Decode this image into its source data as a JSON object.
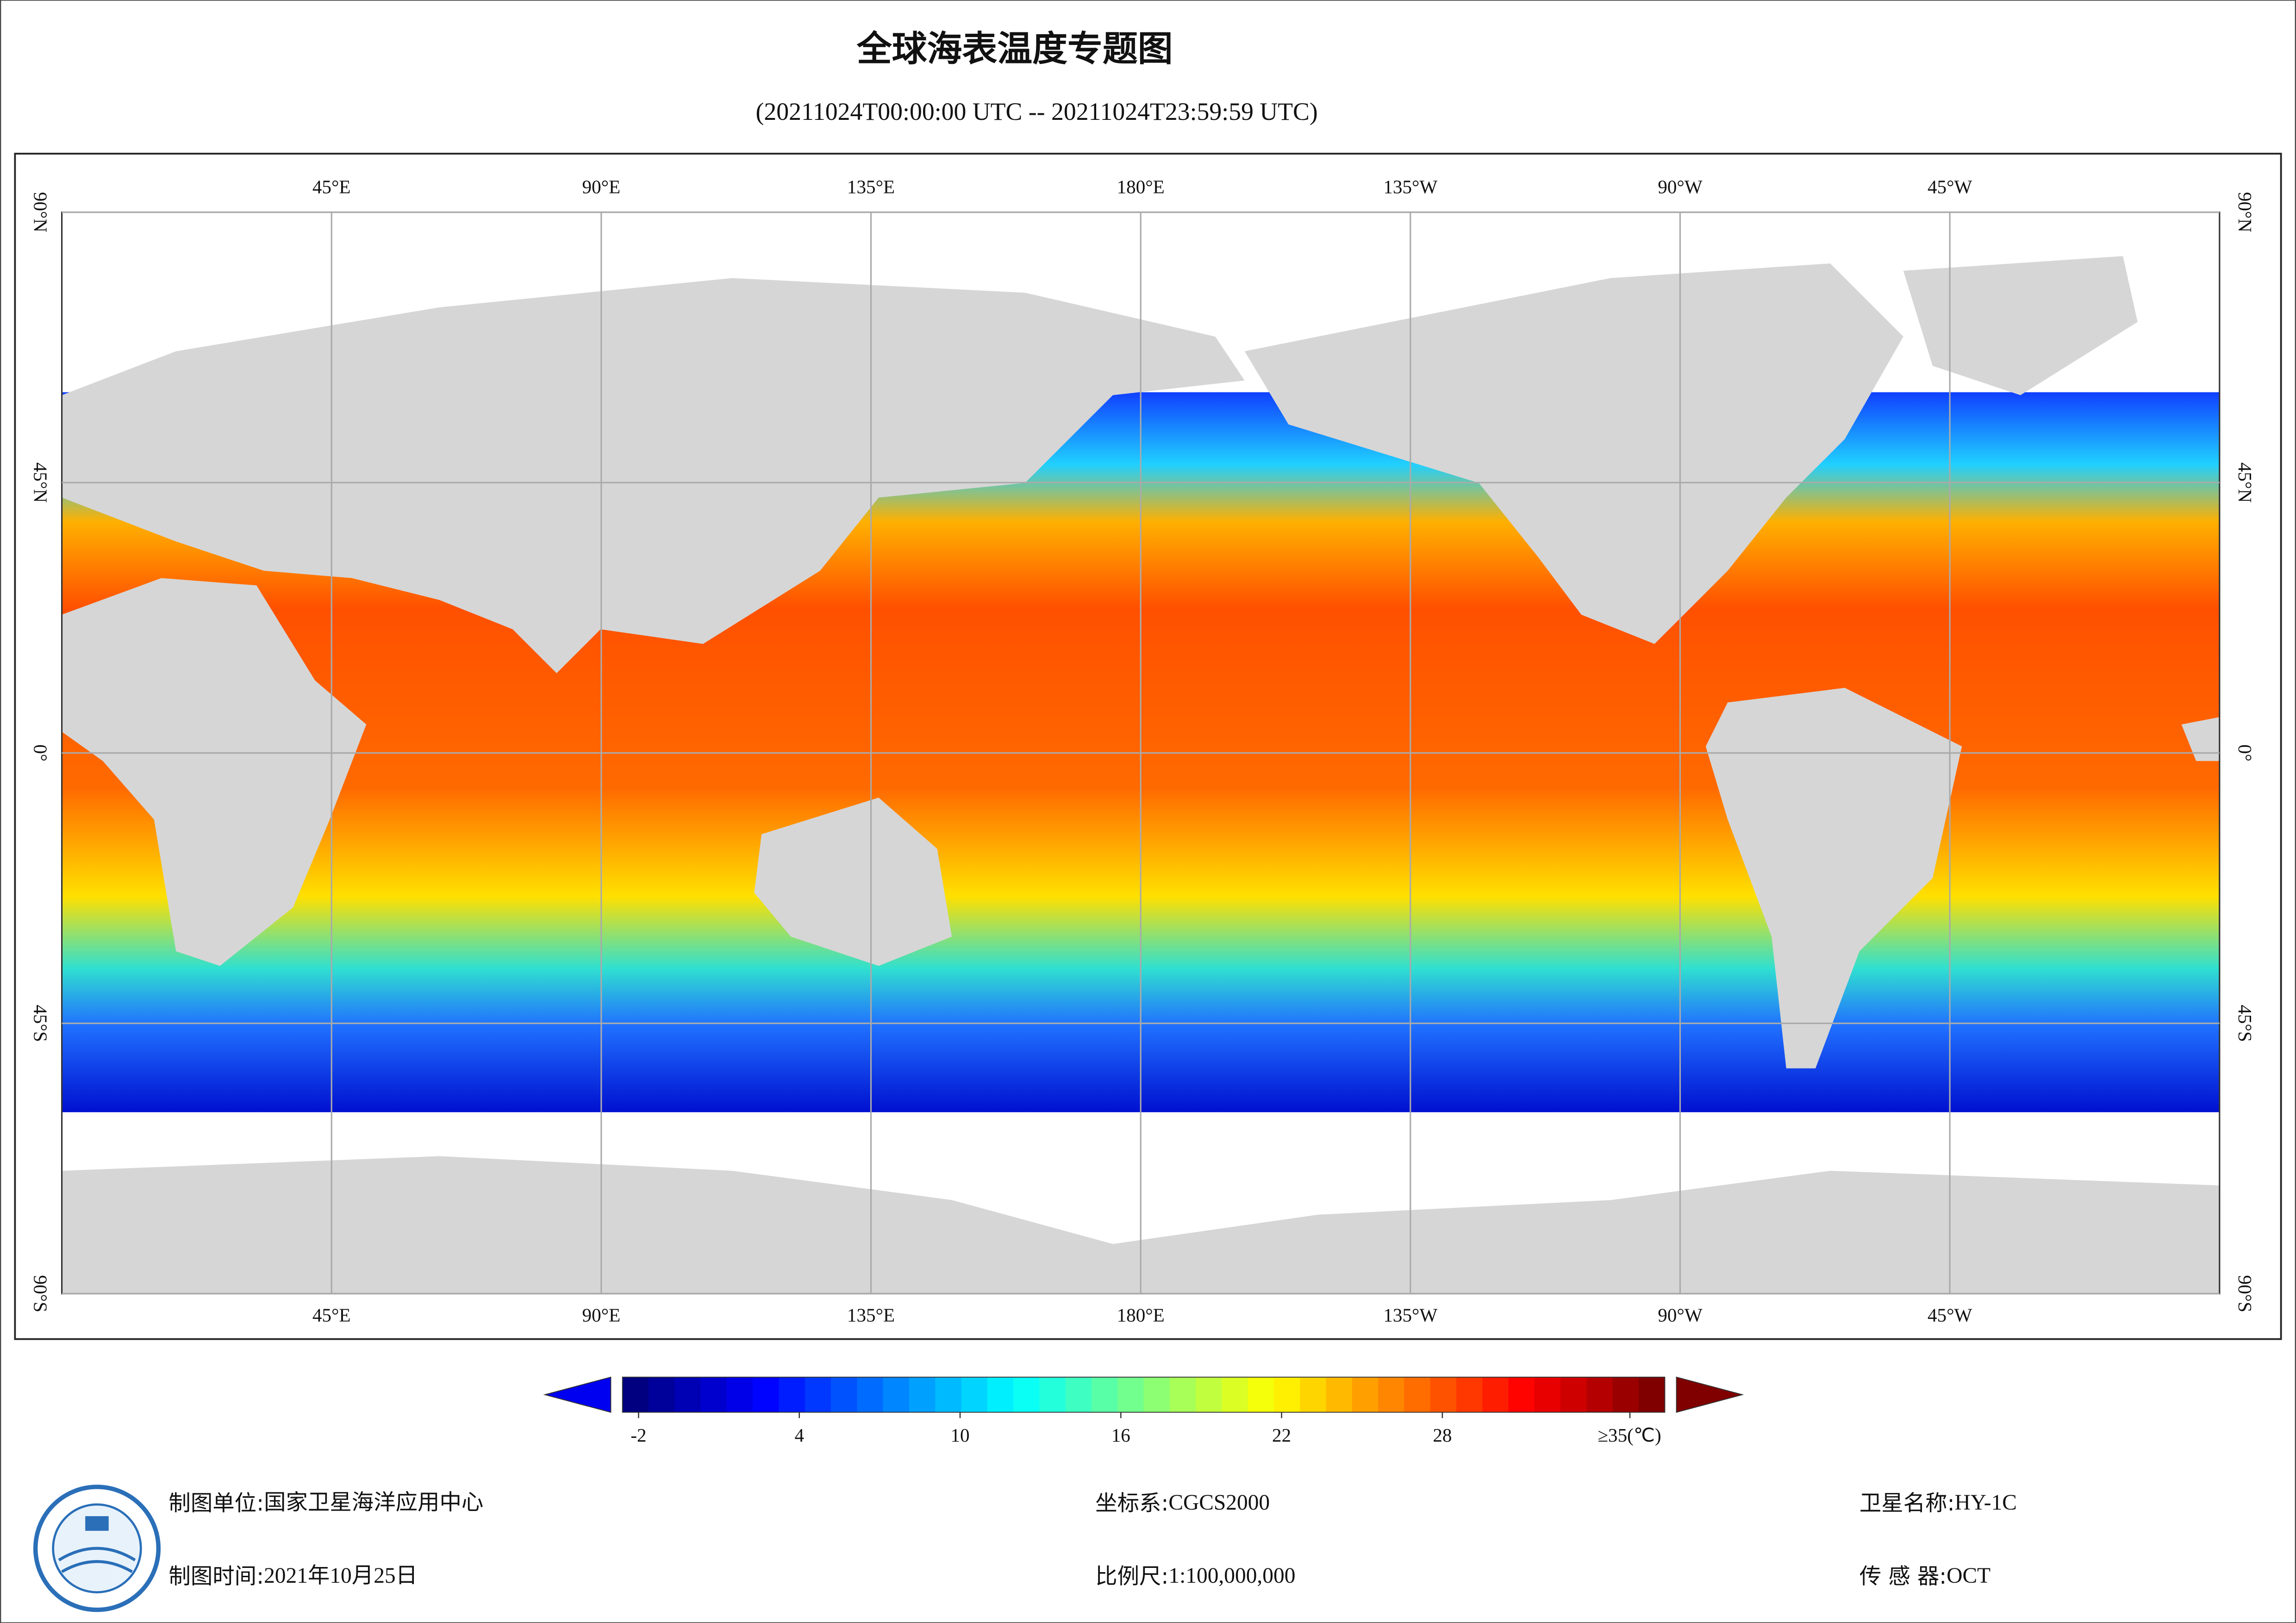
{
  "title": "全球海表温度专题图",
  "subtitle": "(20211024T00:00:00 UTC -- 20211024T23:59:59 UTC)",
  "map": {
    "lon_range": [
      0,
      360
    ],
    "lat_range": [
      -90,
      90
    ],
    "longitude_ticks": [
      {
        "value": 45,
        "label": "45°E"
      },
      {
        "value": 90,
        "label": "90°E"
      },
      {
        "value": 135,
        "label": "135°E"
      },
      {
        "value": 180,
        "label": "180°E"
      },
      {
        "value": 225,
        "label": "135°W"
      },
      {
        "value": 270,
        "label": "90°W"
      },
      {
        "value": 315,
        "label": "45°W"
      }
    ],
    "latitude_ticks": [
      {
        "value": 90,
        "label": "90°N"
      },
      {
        "value": 45,
        "label": "45°N"
      },
      {
        "value": 0,
        "label": "0°"
      },
      {
        "value": -45,
        "label": "45°S"
      },
      {
        "value": -90,
        "label": "90°S"
      }
    ]
  },
  "colorbar": {
    "range": [
      -2.6,
      36.3
    ],
    "ticks": [
      -2,
      4,
      10,
      16,
      22,
      28,
      {
        "value": 35,
        "label": "≥35(℃)"
      }
    ]
  },
  "footer": [
    {
      "label": "制图单位:",
      "value": "国家卫星海洋应用中心"
    },
    {
      "label": "制图时间:",
      "value": "2021年10月25日"
    },
    {
      "label": "坐标系:",
      "value": "CGCS2000"
    },
    {
      "label": "比例尺:",
      "value": "1:100,000,000"
    },
    {
      "label": "卫星名称:",
      "value": "HY-1C"
    },
    {
      "label": "传 感 器:",
      "value": "OCT"
    }
  ]
}
